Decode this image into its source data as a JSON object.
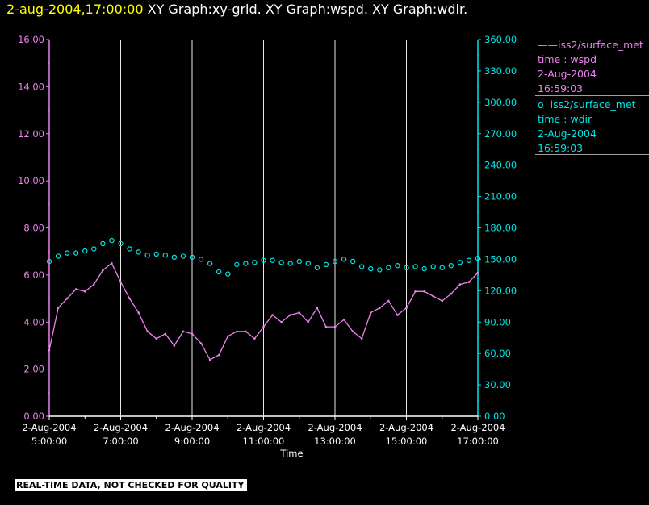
{
  "header": {
    "timestamp": "2-aug-2004,17:00:00",
    "graphs": "XY Graph:xy-grid.  XY Graph:wspd.  XY Graph:wdir."
  },
  "disclaimer": "REAL-TIME DATA, NOT CHECKED FOR QUALITY",
  "legend": {
    "wspd": {
      "marker": "——",
      "source": "iss2/surface_met",
      "var": "time : wspd",
      "date": "2-Aug-2004",
      "time": "16:59:03"
    },
    "wdir": {
      "marker": "o",
      "source": "iss2/surface_met",
      "var": "time : wdir",
      "date": "2-Aug-2004",
      "time": "16:59:03"
    }
  },
  "chart_data": {
    "type": "line",
    "xlabel": "Time",
    "xlim": [
      5.0,
      17.0
    ],
    "x_ticks": [
      {
        "value": 5,
        "date": "2-Aug-2004",
        "time": "5:00:00"
      },
      {
        "value": 7,
        "date": "2-Aug-2004",
        "time": "7:00:00"
      },
      {
        "value": 9,
        "date": "2-Aug-2004",
        "time": "9:00:00"
      },
      {
        "value": 11,
        "date": "2-Aug-2004",
        "time": "11:00:00"
      },
      {
        "value": 13,
        "date": "2-Aug-2004",
        "time": "13:00:00"
      },
      {
        "value": 15,
        "date": "2-Aug-2004",
        "time": "15:00:00"
      },
      {
        "value": 17,
        "date": "2-Aug-2004",
        "time": "17:00:00"
      }
    ],
    "left_axis": {
      "ylim": [
        0,
        16
      ],
      "ticks": [
        "0.00",
        "2.00",
        "4.00",
        "6.00",
        "8.00",
        "10.00",
        "12.00",
        "14.00",
        "16.00"
      ]
    },
    "right_axis": {
      "ylim": [
        0,
        360
      ],
      "ticks": [
        "0.00",
        "30.00",
        "60.00",
        "90.00",
        "120.00",
        "150.00",
        "180.00",
        "210.00",
        "240.00",
        "270.00",
        "300.00",
        "330.00",
        "360.00"
      ]
    },
    "grid": "vertical lines at x ticks",
    "legend_position": "right, outside plot",
    "series": [
      {
        "name": "iss2/surface_met time : wspd",
        "axis": "left",
        "style": "line",
        "color": "#ee82ee",
        "x": [
          5.0,
          5.25,
          5.5,
          5.75,
          6.0,
          6.25,
          6.5,
          6.75,
          7.0,
          7.25,
          7.5,
          7.75,
          8.0,
          8.25,
          8.5,
          8.75,
          9.0,
          9.25,
          9.5,
          9.75,
          10.0,
          10.25,
          10.5,
          10.75,
          11.0,
          11.25,
          11.5,
          11.75,
          12.0,
          12.25,
          12.5,
          12.75,
          13.0,
          13.25,
          13.5,
          13.75,
          14.0,
          14.25,
          14.5,
          14.75,
          15.0,
          15.25,
          15.5,
          15.75,
          16.0,
          16.25,
          16.5,
          16.75,
          17.0
        ],
        "y": [
          2.8,
          4.6,
          5.0,
          5.4,
          5.3,
          5.6,
          6.2,
          6.5,
          5.7,
          5.0,
          4.4,
          3.6,
          3.3,
          3.5,
          3.0,
          3.6,
          3.5,
          3.1,
          2.4,
          2.6,
          3.4,
          3.6,
          3.6,
          3.3,
          3.8,
          4.3,
          4.0,
          4.3,
          4.4,
          4.0,
          4.6,
          3.8,
          3.8,
          4.1,
          3.6,
          3.3,
          4.4,
          4.6,
          4.9,
          4.3,
          4.6,
          5.3,
          5.3,
          5.1,
          4.9,
          5.2,
          5.6,
          5.7,
          6.1
        ]
      },
      {
        "name": "iss2/surface_met time : wdir",
        "axis": "right",
        "style": "scatter",
        "marker": "circle",
        "color": "#00e5e5",
        "x": [
          5.0,
          5.25,
          5.5,
          5.75,
          6.0,
          6.25,
          6.5,
          6.75,
          7.0,
          7.25,
          7.5,
          7.75,
          8.0,
          8.25,
          8.5,
          8.75,
          9.0,
          9.25,
          9.5,
          9.75,
          10.0,
          10.25,
          10.5,
          10.75,
          11.0,
          11.25,
          11.5,
          11.75,
          12.0,
          12.25,
          12.5,
          12.75,
          13.0,
          13.25,
          13.5,
          13.75,
          14.0,
          14.25,
          14.5,
          14.75,
          15.0,
          15.25,
          15.5,
          15.75,
          16.0,
          16.25,
          16.5,
          16.75,
          17.0
        ],
        "y": [
          148,
          153,
          156,
          156,
          158,
          160,
          165,
          168,
          165,
          160,
          157,
          154,
          155,
          154,
          152,
          153,
          152,
          150,
          146,
          138,
          136,
          145,
          146,
          147,
          149,
          149,
          147,
          146,
          148,
          146,
          142,
          145,
          148,
          150,
          148,
          143,
          141,
          140,
          142,
          144,
          142,
          143,
          141,
          143,
          142,
          144,
          147,
          149,
          151
        ]
      }
    ]
  }
}
